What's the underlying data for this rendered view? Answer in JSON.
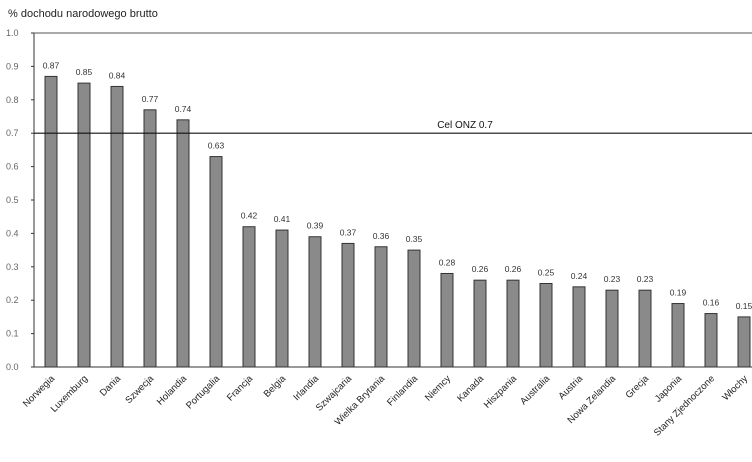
{
  "chart_data": {
    "type": "bar",
    "ylabel": "% dochodu narodowego brutto",
    "ylim": [
      0,
      1.0
    ],
    "yticks": [
      {
        "value": 0.0,
        "label": "0.0"
      },
      {
        "value": 0.1,
        "label": "0.1"
      },
      {
        "value": 0.2,
        "label": "0.2"
      },
      {
        "value": 0.3,
        "label": "0.3"
      },
      {
        "value": 0.4,
        "label": "0.4"
      },
      {
        "value": 0.5,
        "label": "0.5"
      },
      {
        "value": 0.6,
        "label": "0.6"
      },
      {
        "value": 0.7,
        "label": "0.7"
      },
      {
        "value": 0.8,
        "label": "0.8"
      },
      {
        "value": 0.9,
        "label": "0.9"
      },
      {
        "value": 1.0,
        "label": "1.0"
      }
    ],
    "categories": [
      "Norwegia",
      "Luxemburg",
      "Dania",
      "Szwecja",
      "Holandia",
      "Portugalia",
      "Francja",
      "Belgia",
      "Irlandia",
      "Szwajcaria",
      "Wielka Brytania",
      "Finlandia",
      "Niemcy",
      "Kanada",
      "Hiszpania",
      "Australia",
      "Austria",
      "Nowa Zelandia",
      "Grecja",
      "Japonia",
      "Stany Zjednoczone",
      "Włochy"
    ],
    "values": [
      0.87,
      0.85,
      0.84,
      0.77,
      0.74,
      0.63,
      0.42,
      0.41,
      0.39,
      0.37,
      0.36,
      0.35,
      0.28,
      0.26,
      0.26,
      0.25,
      0.24,
      0.23,
      0.23,
      0.19,
      0.16,
      0.15
    ],
    "value_labels": [
      "0.87",
      "0.85",
      "0.84",
      "0.77",
      "0.74",
      "0.63",
      "0.42",
      "0.41",
      "0.39",
      "0.37",
      "0.36",
      "0.35",
      "0.28",
      "0.26",
      "0.26",
      "0.25",
      "0.24",
      "0.23",
      "0.23",
      "0.19",
      "0.16",
      "0.15"
    ],
    "reference_line": {
      "value": 0.7,
      "label": "Cel ONZ 0.7"
    },
    "grid": false,
    "bar_color": "#8a8a8a",
    "bar_edge_color": "#333333",
    "line_color": "#111111"
  }
}
